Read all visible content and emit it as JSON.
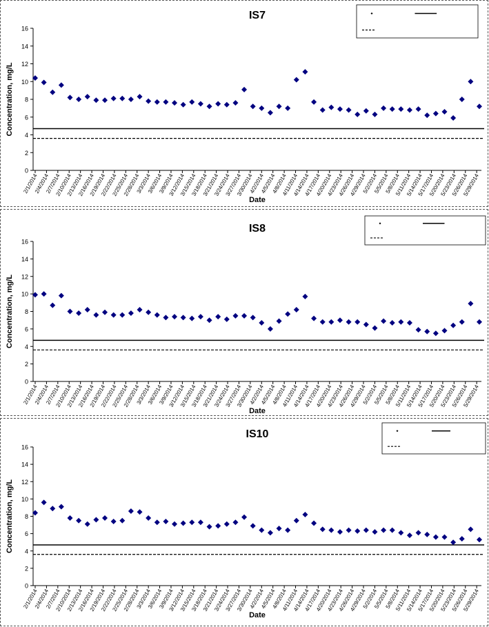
{
  "chart_data": [
    {
      "type": "scatter",
      "title": "IS7",
      "xlabel": "Date",
      "ylabel": "Concentration, mg/L",
      "ylim": [
        0,
        16
      ],
      "yticks": [
        0,
        2,
        4,
        6,
        8,
        10,
        12,
        14,
        16
      ],
      "xticklabels": [
        "2/1/2014",
        "2/4/2014",
        "2/7/2014",
        "2/10/2014",
        "2/13/2014",
        "2/16/2014",
        "2/19/2014",
        "2/22/2014",
        "2/25/2014",
        "2/28/2014",
        "3/3/2014",
        "3/6/2014",
        "3/9/2014",
        "3/12/2014",
        "3/15/2014",
        "3/18/2014",
        "3/21/2014",
        "3/24/2014",
        "3/27/2014",
        "3/30/2014",
        "4/2/2014",
        "4/5/2014",
        "4/8/2014",
        "4/11/2014",
        "4/14/2014",
        "4/17/2014",
        "4/20/2014",
        "4/23/2014",
        "4/26/2014",
        "4/29/2014",
        "5/2/2014",
        "5/5/2014",
        "5/8/2014",
        "5/11/2014",
        "5/14/2014",
        "5/17/2014",
        "5/20/2014",
        "5/23/2014",
        "5/26/2014",
        "5/29/2014"
      ],
      "legend_position": "top-right",
      "grid": false,
      "points": [
        10.4,
        9.9,
        8.8,
        9.6,
        8.2,
        8.0,
        8.3,
        7.9,
        7.9,
        8.1,
        8.1,
        8.0,
        8.3,
        7.8,
        7.7,
        7.7,
        7.6,
        7.4,
        7.7,
        7.5,
        7.2,
        7.5,
        7.4,
        7.6,
        9.1,
        7.2,
        7.0,
        6.5,
        7.2,
        7.0,
        10.2,
        11.1,
        7.7,
        6.8,
        7.1,
        6.9,
        6.8,
        6.3,
        6.7,
        6.3,
        7.0,
        6.9,
        6.9,
        6.8,
        6.9,
        6.2,
        6.4,
        6.6,
        5.9,
        8.0,
        10.0,
        7.2
      ],
      "solid_line": 4.7,
      "dashed_line": 3.6
    },
    {
      "type": "scatter",
      "title": "IS8",
      "xlabel": "Date",
      "ylabel": "Concentration, mg/L",
      "ylim": [
        0,
        16
      ],
      "yticks": [
        0,
        2,
        4,
        6,
        8,
        10,
        12,
        14,
        16
      ],
      "xticklabels": [
        "2/1/2014",
        "2/4/2014",
        "2/7/2014",
        "2/10/2014",
        "2/13/2014",
        "2/16/2014",
        "2/19/2014",
        "2/22/2014",
        "2/25/2014",
        "2/28/2014",
        "3/3/2014",
        "3/6/2014",
        "3/9/2014",
        "3/12/2014",
        "3/15/2014",
        "3/18/2014",
        "3/21/2014",
        "3/24/2014",
        "3/27/2014",
        "3/30/2014",
        "4/2/2014",
        "4/5/2014",
        "4/8/2014",
        "4/11/2014",
        "4/14/2014",
        "4/17/2014",
        "4/20/2014",
        "4/23/2014",
        "4/26/2014",
        "4/29/2014",
        "5/2/2014",
        "5/5/2014",
        "5/8/2014",
        "5/11/2014",
        "5/14/2014",
        "5/17/2014",
        "5/20/2014",
        "5/23/2014",
        "5/26/2014",
        "5/29/2014"
      ],
      "legend_position": "top-right",
      "grid": false,
      "points": [
        9.9,
        10.0,
        8.7,
        9.8,
        8.0,
        7.8,
        8.2,
        7.6,
        7.9,
        7.6,
        7.6,
        7.8,
        8.2,
        7.9,
        7.6,
        7.3,
        7.4,
        7.3,
        7.2,
        7.4,
        7.0,
        7.4,
        7.1,
        7.5,
        7.5,
        7.3,
        6.7,
        6.0,
        6.9,
        7.7,
        8.2,
        9.7,
        7.2,
        6.8,
        6.8,
        7.0,
        6.8,
        6.8,
        6.5,
        6.1,
        6.9,
        6.7,
        6.8,
        6.7,
        5.9,
        5.7,
        5.5,
        5.8,
        6.4,
        6.8,
        8.9,
        6.8
      ],
      "solid_line": 4.7,
      "dashed_line": 3.6
    },
    {
      "type": "scatter",
      "title": "IS10",
      "xlabel": "Date",
      "ylabel": "Concentration, mg/L",
      "ylim": [
        0,
        16
      ],
      "yticks": [
        0,
        2,
        4,
        6,
        8,
        10,
        12,
        14,
        16
      ],
      "xticklabels": [
        "2/1/2014",
        "2/4/2014",
        "2/7/2014",
        "2/10/2014",
        "2/13/2014",
        "2/16/2014",
        "2/19/2014",
        "2/22/2014",
        "2/25/2014",
        "2/28/2014",
        "3/3/2014",
        "3/6/2014",
        "3/9/2014",
        "3/12/2014",
        "3/15/2014",
        "3/18/2014",
        "3/21/2014",
        "3/24/2014",
        "3/27/2014",
        "3/30/2014",
        "4/2/2014",
        "4/5/2014",
        "4/8/2014",
        "4/11/2014",
        "4/14/2014",
        "4/17/2014",
        "4/20/2014",
        "4/23/2014",
        "4/26/2014",
        "4/29/2014",
        "5/2/2014",
        "5/5/2014",
        "5/8/2014",
        "5/11/2014",
        "5/14/2014",
        "5/17/2014",
        "5/20/2014",
        "5/23/2014",
        "5/26/2014",
        "5/29/2014"
      ],
      "legend_position": "top-right",
      "grid": false,
      "points": [
        8.4,
        9.6,
        8.9,
        9.1,
        7.8,
        7.5,
        7.1,
        7.6,
        7.8,
        7.4,
        7.5,
        8.6,
        8.5,
        7.8,
        7.3,
        7.4,
        7.1,
        7.2,
        7.3,
        7.3,
        6.8,
        6.9,
        7.1,
        7.3,
        7.9,
        6.9,
        6.4,
        6.1,
        6.6,
        6.4,
        7.5,
        8.2,
        7.2,
        6.5,
        6.4,
        6.2,
        6.4,
        6.3,
        6.4,
        6.2,
        6.4,
        6.4,
        6.1,
        5.8,
        6.1,
        5.9,
        5.6,
        5.6,
        5.0,
        5.4,
        6.5,
        5.3
      ],
      "solid_line": 4.7,
      "dashed_line": 3.6
    }
  ],
  "colors": {
    "marker": "#000080",
    "line": "#000000",
    "text": "#000000"
  }
}
